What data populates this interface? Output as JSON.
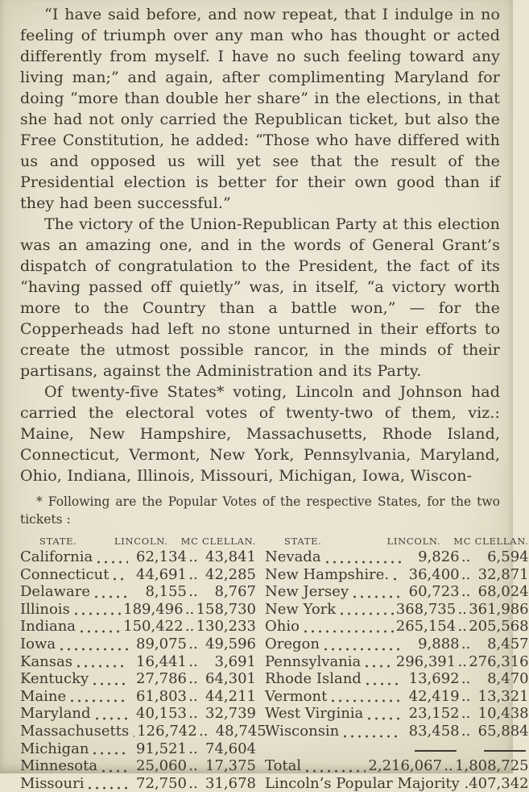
{
  "page": {
    "bg_color": "#e9e4d0",
    "ink_color": "#3b392f"
  },
  "paragraphs": [
    {
      "text": "“I have said before, and now repeat, that I indulge in no feeling of triumph over any man who has thought or acted differently from myself. I have no such feeling toward any living man;” and again, after complimenting Maryland for doing “more than double her share” in the elections, in that she had not only carried the Republican ticket, but also the Free Constitution, he added: “Those who have differed with us and opposed us will yet see that the result of the Presidential election is better for their own good than if they had been successful.”"
    },
    {
      "text": "The victory of the Union-Republican Party at this election was an amazing one, and in the words of General Grant’s dispatch of congratulation to the President, the fact of its “having passed off quietly” was, in itself, “a victory worth more to the Country than a battle won,” — for the Copperheads had left no stone unturned in their efforts to create the utmost possible rancor, in the minds of their partisans, against the Administration and its Party."
    },
    {
      "text": "Of twenty-five States* voting, Lincoln and Johnson had carried the electoral votes of twenty-two of them, viz.: Maine, New Hampshire, Massachusetts, Rhode Island, Connecticut, Vermont, New York, Pennsylvania, Maryland, Ohio, Indiana, Illinois, Missouri, Michigan, Iowa, Wiscon-"
    }
  ],
  "footnote": {
    "text": "* Following are the Popular Votes of the respective States, for the two tickets :"
  },
  "votes_table": {
    "headers": {
      "state": "STATE.",
      "lincoln": "LINCOLN.",
      "mcclellan": "MC CLELLAN."
    },
    "separator": "..",
    "left_rows": [
      {
        "state": "California",
        "lincoln": "62,134",
        "mcclellan": "43,841"
      },
      {
        "state": "Connecticut",
        "lincoln": "44,691",
        "mcclellan": "42,285"
      },
      {
        "state": "Delaware",
        "lincoln": "8,155",
        "mcclellan": "8,767"
      },
      {
        "state": "Illinois",
        "lincoln": "189,496",
        "mcclellan": "158,730"
      },
      {
        "state": "Indiana",
        "lincoln": "150,422",
        "mcclellan": "130,233"
      },
      {
        "state": "Iowa",
        "lincoln": "89,075",
        "mcclellan": "49,596"
      },
      {
        "state": "Kansas",
        "lincoln": "16,441",
        "mcclellan": "3,691"
      },
      {
        "state": "Kentucky",
        "lincoln": "27,786",
        "mcclellan": "64,301"
      },
      {
        "state": "Maine",
        "lincoln": "61,803",
        "mcclellan": "44,211"
      },
      {
        "state": "Maryland",
        "lincoln": "40,153",
        "mcclellan": "32,739"
      },
      {
        "state": "Massachusetts",
        "lincoln": "126,742",
        "mcclellan": "48,745"
      },
      {
        "state": "Michigan",
        "lincoln": "91,521",
        "mcclellan": "74,604"
      },
      {
        "state": "Minnesota",
        "lincoln": "25,060",
        "mcclellan": "17,375"
      },
      {
        "state": "Missouri",
        "lincoln": "72,750",
        "mcclellan": "31,678"
      }
    ],
    "right_rows": [
      {
        "state": "Nevada",
        "lincoln": "9,826",
        "mcclellan": "6,594"
      },
      {
        "state": "New Hampshire.",
        "lincoln": "36,400",
        "mcclellan": "32,871"
      },
      {
        "state": "New Jersey",
        "lincoln": "60,723",
        "mcclellan": "68,024"
      },
      {
        "state": "New York",
        "lincoln": "368,735",
        "mcclellan": "361,986"
      },
      {
        "state": "Ohio",
        "lincoln": "265,154",
        "mcclellan": "205,568"
      },
      {
        "state": "Oregon",
        "lincoln": "9,888",
        "mcclellan": "8,457"
      },
      {
        "state": "Pennsylvania",
        "lincoln": "296,391",
        "mcclellan": "276,316"
      },
      {
        "state": "Rhode Island",
        "lincoln": "13,692",
        "mcclellan": "8,470"
      },
      {
        "state": "Vermont",
        "lincoln": "42,419",
        "mcclellan": "13,321"
      },
      {
        "state": "West Virginia",
        "lincoln": "23,152",
        "mcclellan": "10,438"
      },
      {
        "state": "Wisconsin",
        "lincoln": "83,458",
        "mcclellan": "65,884"
      }
    ],
    "totals": {
      "label": "Total",
      "lincoln": "2,216,067",
      "mcclellan": "1,808,725"
    },
    "majority": {
      "label": "Lincoln’s Popular Majority .",
      "value": "407,342"
    }
  }
}
